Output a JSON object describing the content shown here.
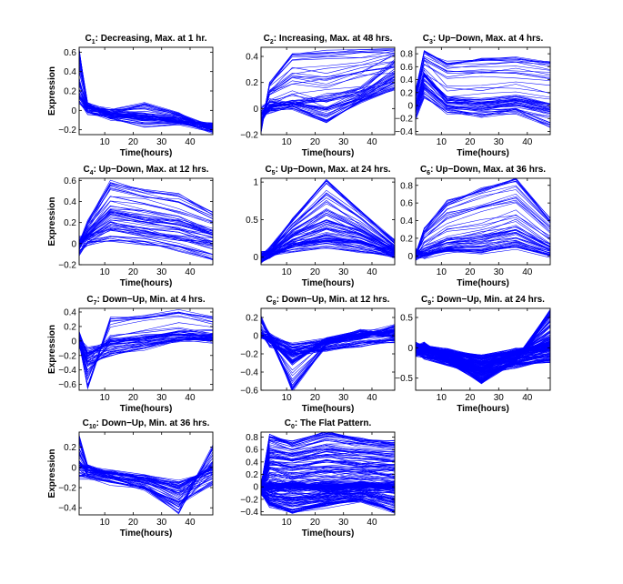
{
  "figure": {
    "x_label": "Time(hours)",
    "y_label": "Expression",
    "line_color": "#0000ff"
  },
  "chart_data": [
    {
      "type": "line",
      "title_pre": "C",
      "title_sub": "1",
      "title_post": ": Decreasing, Max. at 1 hr.",
      "xlabel": "Time(hours)",
      "ylabel": "Expression",
      "xlim": [
        1,
        48
      ],
      "ylim": [
        -0.25,
        0.65
      ],
      "xticks": [
        10,
        20,
        30,
        40
      ],
      "yticks": [
        -0.2,
        0,
        0.2,
        0.4,
        0.6
      ],
      "x": [
        1,
        4,
        12,
        24,
        36,
        48
      ],
      "series_count": 60,
      "representative_series": [
        {
          "values": [
            0.62,
            0.05,
            -0.05,
            -0.08,
            -0.1,
            -0.15
          ]
        },
        {
          "values": [
            0.3,
            0.05,
            0.0,
            -0.05,
            -0.1,
            -0.2
          ]
        },
        {
          "values": [
            0.15,
            0.02,
            -0.02,
            0.05,
            -0.05,
            -0.18
          ]
        },
        {
          "values": [
            0.1,
            -0.02,
            -0.08,
            -0.15,
            -0.12,
            -0.22
          ]
        }
      ]
    },
    {
      "type": "line",
      "title_pre": "C",
      "title_sub": "2",
      "title_post": ": Increasing, Max. at 48 hrs.",
      "xlabel": "Time(hours)",
      "ylabel": "",
      "xlim": [
        1,
        48
      ],
      "ylim": [
        -0.2,
        0.47
      ],
      "xticks": [
        10,
        20,
        30,
        40
      ],
      "yticks": [
        -0.2,
        0,
        0.2,
        0.4
      ],
      "x": [
        1,
        4,
        12,
        24,
        36,
        48
      ],
      "series_count": 60,
      "representative_series": [
        {
          "values": [
            -0.18,
            0.2,
            0.42,
            0.43,
            0.44,
            0.45
          ]
        },
        {
          "values": [
            -0.1,
            0.02,
            0.05,
            0.0,
            0.1,
            0.25
          ]
        },
        {
          "values": [
            0.0,
            0.05,
            0.05,
            0.1,
            0.15,
            0.35
          ]
        },
        {
          "values": [
            -0.05,
            -0.02,
            0.0,
            -0.1,
            0.05,
            0.15
          ]
        }
      ]
    },
    {
      "type": "line",
      "title_pre": "C",
      "title_sub": "3",
      "title_post": ": Up−Down, Max. at 4 hrs.",
      "xlabel": "Time(hours)",
      "ylabel": "",
      "xlim": [
        1,
        48
      ],
      "ylim": [
        -0.45,
        0.9
      ],
      "xticks": [
        10,
        20,
        30,
        40
      ],
      "yticks": [
        -0.4,
        -0.2,
        0,
        0.2,
        0.4,
        0.6,
        0.8
      ],
      "x": [
        1,
        4,
        12,
        24,
        36,
        48
      ],
      "series_count": 60,
      "representative_series": [
        {
          "values": [
            0.2,
            0.85,
            0.65,
            0.7,
            0.72,
            0.65
          ]
        },
        {
          "values": [
            0.0,
            0.5,
            0.1,
            0.05,
            0.1,
            0.0
          ]
        },
        {
          "values": [
            -0.1,
            0.3,
            0.0,
            -0.05,
            0.0,
            -0.1
          ]
        },
        {
          "values": [
            -0.2,
            0.15,
            -0.1,
            -0.15,
            -0.1,
            -0.3
          ]
        }
      ]
    },
    {
      "type": "line",
      "title_pre": "C",
      "title_sub": "4",
      "title_post": ": Up−Down, Max. at 12 hrs.",
      "xlabel": "Time(hours)",
      "ylabel": "Expression",
      "xlim": [
        1,
        48
      ],
      "ylim": [
        -0.2,
        0.62
      ],
      "xticks": [
        10,
        20,
        30,
        40
      ],
      "yticks": [
        -0.2,
        0,
        0.2,
        0.4,
        0.6
      ],
      "x": [
        1,
        4,
        12,
        24,
        36,
        48
      ],
      "series_count": 60,
      "representative_series": [
        {
          "values": [
            0.0,
            0.2,
            0.58,
            0.5,
            0.45,
            0.3
          ]
        },
        {
          "values": [
            -0.05,
            0.1,
            0.3,
            0.25,
            0.2,
            0.1
          ]
        },
        {
          "values": [
            0.05,
            0.05,
            0.15,
            0.1,
            0.05,
            0.0
          ]
        },
        {
          "values": [
            -0.1,
            0.0,
            0.05,
            0.0,
            -0.05,
            -0.15
          ]
        }
      ]
    },
    {
      "type": "line",
      "title_pre": "C",
      "title_sub": "5",
      "title_post": ": Up−Down, Max. at 24 hrs.",
      "xlabel": "Time(hours)",
      "ylabel": "",
      "xlim": [
        1,
        48
      ],
      "ylim": [
        -0.1,
        1.05
      ],
      "xticks": [
        10,
        20,
        30,
        40
      ],
      "yticks": [
        0,
        0.5,
        1
      ],
      "x": [
        1,
        4,
        12,
        24,
        36,
        48
      ],
      "series_count": 80,
      "representative_series": [
        {
          "values": [
            0.0,
            0.1,
            0.5,
            1.02,
            0.6,
            0.2
          ]
        },
        {
          "values": [
            0.0,
            0.05,
            0.3,
            0.5,
            0.35,
            0.1
          ]
        },
        {
          "values": [
            -0.05,
            0.0,
            0.15,
            0.25,
            0.2,
            0.05
          ]
        },
        {
          "values": [
            0.05,
            0.05,
            0.1,
            0.15,
            0.1,
            0.0
          ]
        }
      ]
    },
    {
      "type": "line",
      "title_pre": "C",
      "title_sub": "6",
      "title_post": ": Up−Down, Max. at 36 hrs.",
      "xlabel": "Time(hours)",
      "ylabel": "",
      "xlim": [
        1,
        48
      ],
      "ylim": [
        -0.1,
        0.88
      ],
      "xticks": [
        10,
        20,
        30,
        40
      ],
      "yticks": [
        0,
        0.2,
        0.4,
        0.6,
        0.8
      ],
      "x": [
        1,
        4,
        12,
        24,
        36,
        48
      ],
      "series_count": 60,
      "representative_series": [
        {
          "values": [
            0.0,
            0.3,
            0.6,
            0.75,
            0.85,
            0.4
          ]
        },
        {
          "values": [
            0.0,
            0.05,
            0.15,
            0.2,
            0.3,
            0.1
          ]
        },
        {
          "values": [
            -0.05,
            0.0,
            0.1,
            0.1,
            0.2,
            0.05
          ]
        },
        {
          "values": [
            0.05,
            0.0,
            0.05,
            0.05,
            0.1,
            0.0
          ]
        }
      ]
    },
    {
      "type": "line",
      "title_pre": "C",
      "title_sub": "7",
      "title_post": ": Down−Up, Min. at 4 hrs.",
      "xlabel": "Time(hours)",
      "ylabel": "Expression",
      "xlim": [
        1,
        48
      ],
      "ylim": [
        -0.68,
        0.45
      ],
      "xticks": [
        10,
        20,
        30,
        40
      ],
      "yticks": [
        -0.6,
        -0.4,
        -0.2,
        0,
        0.2,
        0.4
      ],
      "x": [
        1,
        4,
        12,
        24,
        36,
        48
      ],
      "series_count": 55,
      "representative_series": [
        {
          "values": [
            0.0,
            -0.65,
            0.3,
            0.35,
            0.4,
            0.3
          ]
        },
        {
          "values": [
            0.1,
            -0.2,
            0.0,
            0.05,
            0.1,
            0.05
          ]
        },
        {
          "values": [
            0.0,
            -0.1,
            -0.05,
            0.0,
            0.05,
            0.0
          ]
        },
        {
          "values": [
            -0.05,
            -0.3,
            -0.2,
            -0.1,
            0.0,
            0.05
          ]
        }
      ]
    },
    {
      "type": "line",
      "title_pre": "C",
      "title_sub": "8",
      "title_post": ": Down−Up, Min. at 12 hrs.",
      "xlabel": "Time(hours)",
      "ylabel": "",
      "xlim": [
        1,
        48
      ],
      "ylim": [
        -0.6,
        0.3
      ],
      "xticks": [
        10,
        20,
        30,
        40
      ],
      "yticks": [
        -0.6,
        -0.4,
        -0.2,
        0,
        0.2
      ],
      "x": [
        1,
        4,
        12,
        24,
        36,
        48
      ],
      "series_count": 80,
      "representative_series": [
        {
          "values": [
            0.2,
            0.0,
            -0.6,
            -0.1,
            0.0,
            0.1
          ]
        },
        {
          "values": [
            0.0,
            -0.05,
            -0.3,
            -0.05,
            0.05,
            0.0
          ]
        },
        {
          "values": [
            0.0,
            0.0,
            -0.1,
            -0.05,
            0.0,
            0.05
          ]
        },
        {
          "values": [
            0.05,
            -0.1,
            -0.2,
            -0.15,
            -0.1,
            -0.05
          ]
        }
      ]
    },
    {
      "type": "line",
      "title_pre": "C",
      "title_sub": "9",
      "title_post": ": Down−Up, Min. at 24 hrs.",
      "xlabel": "Time(hours)",
      "ylabel": "",
      "xlim": [
        1,
        48
      ],
      "ylim": [
        -0.7,
        0.65
      ],
      "xticks": [
        10,
        20,
        30,
        40
      ],
      "yticks": [
        -0.5,
        0,
        0.5
      ],
      "x": [
        1,
        4,
        12,
        24,
        36,
        48
      ],
      "series_count": 200,
      "representative_series": [
        {
          "values": [
            0.0,
            0.05,
            -0.2,
            -0.55,
            -0.2,
            0.6
          ]
        },
        {
          "values": [
            0.0,
            -0.05,
            -0.1,
            -0.3,
            -0.1,
            0.1
          ]
        },
        {
          "values": [
            0.05,
            0.0,
            -0.05,
            -0.15,
            -0.05,
            0.0
          ]
        },
        {
          "values": [
            -0.1,
            -0.15,
            -0.25,
            -0.4,
            -0.3,
            -0.2
          ]
        }
      ]
    },
    {
      "type": "line",
      "title_pre": "C",
      "title_sub": "10",
      "title_post": ": Down−Up, Min. at 36 hrs.",
      "xlabel": "Time(hours)",
      "ylabel": "Expression",
      "xlim": [
        1,
        48
      ],
      "ylim": [
        -0.47,
        0.35
      ],
      "xticks": [
        10,
        20,
        30,
        40
      ],
      "yticks": [
        -0.4,
        -0.2,
        0,
        0.2
      ],
      "x": [
        1,
        4,
        12,
        24,
        36,
        48
      ],
      "series_count": 60,
      "representative_series": [
        {
          "values": [
            0.3,
            0.0,
            -0.1,
            -0.2,
            -0.45,
            0.2
          ]
        },
        {
          "values": [
            0.05,
            -0.05,
            -0.05,
            -0.1,
            -0.2,
            0.0
          ]
        },
        {
          "values": [
            0.0,
            0.0,
            -0.05,
            -0.1,
            -0.15,
            -0.05
          ]
        },
        {
          "values": [
            -0.1,
            -0.1,
            -0.15,
            -0.2,
            -0.35,
            -0.15
          ]
        }
      ]
    },
    {
      "type": "line",
      "title_pre": "C",
      "title_sub": "0",
      "title_post": ": The Flat Pattern.",
      "xlabel": "Time(hours)",
      "ylabel": "",
      "xlim": [
        1,
        48
      ],
      "ylim": [
        -0.45,
        0.88
      ],
      "xticks": [
        10,
        20,
        30,
        40
      ],
      "yticks": [
        -0.4,
        -0.2,
        0,
        0.2,
        0.4,
        0.6,
        0.8
      ],
      "x": [
        1,
        4,
        12,
        24,
        36,
        48
      ],
      "series_count": 220,
      "representative_series": [
        {
          "values": [
            0.0,
            0.8,
            0.7,
            0.85,
            0.75,
            0.7
          ]
        },
        {
          "values": [
            0.0,
            0.05,
            0.0,
            0.05,
            0.0,
            0.05
          ]
        },
        {
          "values": [
            0.05,
            -0.05,
            0.05,
            -0.05,
            0.05,
            0.0
          ]
        },
        {
          "values": [
            -0.1,
            -0.3,
            -0.4,
            -0.3,
            -0.2,
            -0.4
          ]
        }
      ]
    }
  ]
}
